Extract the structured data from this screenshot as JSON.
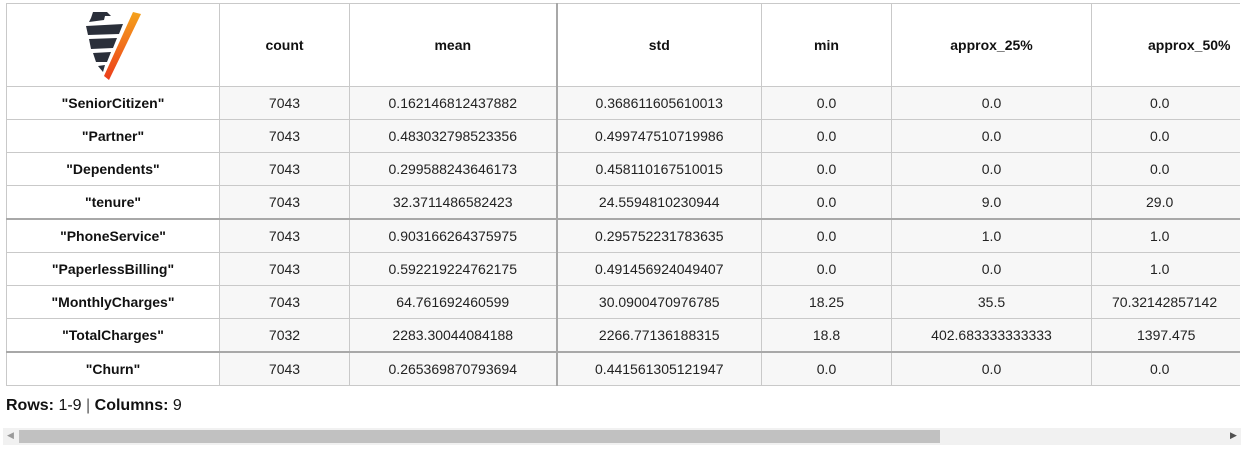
{
  "table": {
    "columns": [
      "count",
      "mean",
      "std",
      "min",
      "approx_25%",
      "approx_50%"
    ],
    "rows": [
      {
        "label": "\"SeniorCitizen\"",
        "values": [
          "7043",
          "0.162146812437882",
          "0.368611605610013",
          "0.0",
          "0.0",
          "0.0"
        ]
      },
      {
        "label": "\"Partner\"",
        "values": [
          "7043",
          "0.483032798523356",
          "0.499747510719986",
          "0.0",
          "0.0",
          "0.0"
        ]
      },
      {
        "label": "\"Dependents\"",
        "values": [
          "7043",
          "0.299588243646173",
          "0.458110167510015",
          "0.0",
          "0.0",
          "0.0"
        ]
      },
      {
        "label": "\"tenure\"",
        "values": [
          "7043",
          "32.3711486582423",
          "24.5594810230944",
          "0.0",
          "9.0",
          "29.0"
        ]
      },
      {
        "label": "\"PhoneService\"",
        "values": [
          "7043",
          "0.903166264375975",
          "0.295752231783635",
          "0.0",
          "1.0",
          "1.0"
        ]
      },
      {
        "label": "\"PaperlessBilling\"",
        "values": [
          "7043",
          "0.592219224762175",
          "0.491456924049407",
          "0.0",
          "0.0",
          "1.0"
        ]
      },
      {
        "label": "\"MonthlyCharges\"",
        "values": [
          "7043",
          "64.761692460599",
          "30.0900470976785",
          "18.25",
          "35.5",
          "70.32142857142"
        ]
      },
      {
        "label": "\"TotalCharges\"",
        "values": [
          "7032",
          "2283.30044084188",
          "2266.77136188315",
          "18.8",
          "402.683333333333",
          "1397.475"
        ]
      },
      {
        "label": "\"Churn\"",
        "values": [
          "7043",
          "0.265369870793694",
          "0.441561305121947",
          "0.0",
          "0.0",
          "0.0"
        ]
      }
    ]
  },
  "status": {
    "rows_label": "Rows:",
    "rows_value": "1-9",
    "separator": "|",
    "columns_label": "Columns:",
    "columns_value": "9"
  },
  "logo": {
    "icon": "vaex-logo-icon",
    "colors": [
      "#2a2f3a",
      "#f08c1a",
      "#ee4a1c"
    ]
  },
  "scrollbar": {
    "position": 0.0,
    "visible_fraction": 0.75
  }
}
